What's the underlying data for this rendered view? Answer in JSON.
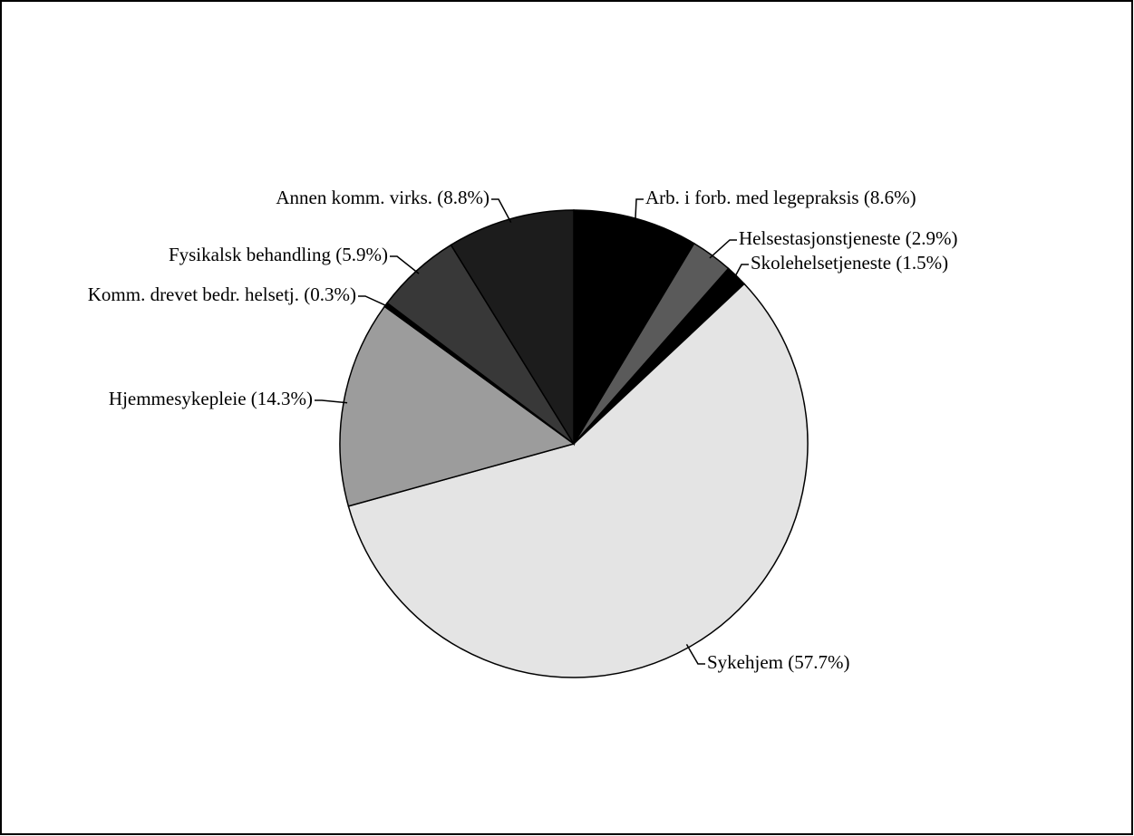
{
  "chart_data": {
    "type": "pie",
    "categories": [
      "Arb. i forb. med legepraksis (8.6%)",
      "Helsestasjonstjeneste (2.9%)",
      "Skolehelsetjeneste (1.5%)",
      "Sykehjem (57.7%)",
      "Hjemmesykepleie (14.3%)",
      "Komm. drevet bedr. helsetj. (0.3%)",
      "Fysikalsk behandling (5.9%)",
      "Annen komm. virks. (8.8%)"
    ],
    "values": [
      8.6,
      2.9,
      1.5,
      57.7,
      14.3,
      0.3,
      5.9,
      8.8
    ],
    "colors": [
      "#000000",
      "#5a5a5a",
      "#000000",
      "#e4e4e4",
      "#9c9c9c",
      "#000000",
      "#383838",
      "#1c1c1c"
    ]
  }
}
